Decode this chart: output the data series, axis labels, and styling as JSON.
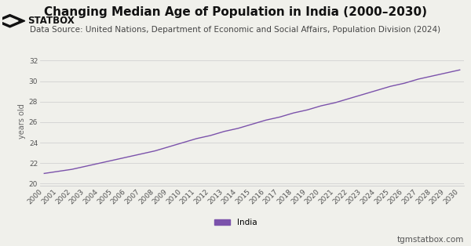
{
  "title": "Changing Median Age of Population in India (2000–2030)",
  "subtitle": "Data Source: United Nations, Department of Economic and Social Affairs, Population Division (2024)",
  "ylabel": "years old",
  "line_color": "#7B52AB",
  "background_color": "#f0f0eb",
  "plot_background": "#f0f0eb",
  "years": [
    2000,
    2001,
    2002,
    2003,
    2004,
    2005,
    2006,
    2007,
    2008,
    2009,
    2010,
    2011,
    2012,
    2013,
    2014,
    2015,
    2016,
    2017,
    2018,
    2019,
    2020,
    2021,
    2022,
    2023,
    2024,
    2025,
    2026,
    2027,
    2028,
    2029,
    2030
  ],
  "values": [
    21.0,
    21.2,
    21.4,
    21.7,
    22.0,
    22.3,
    22.6,
    22.9,
    23.2,
    23.6,
    24.0,
    24.4,
    24.7,
    25.1,
    25.4,
    25.8,
    26.2,
    26.5,
    26.9,
    27.2,
    27.6,
    27.9,
    28.3,
    28.7,
    29.1,
    29.5,
    29.8,
    30.2,
    30.5,
    30.8,
    31.1
  ],
  "ylim": [
    19.8,
    32.4
  ],
  "yticks": [
    20,
    22,
    24,
    26,
    28,
    30,
    32
  ],
  "legend_label": "India",
  "footer_text": "tgmstatbox.com",
  "title_fontsize": 11,
  "subtitle_fontsize": 7.5,
  "tick_fontsize": 6.5,
  "ylabel_fontsize": 7,
  "legend_fontsize": 7.5,
  "footer_fontsize": 7.5
}
